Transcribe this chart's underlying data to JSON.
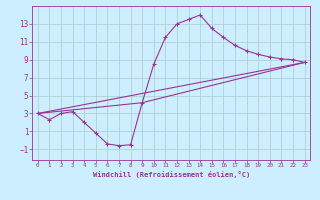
{
  "bg_color": "#cceeff",
  "grid_color": "#aacccc",
  "line_color": "#993399",
  "marker_color": "#993399",
  "xlim": [
    -0.5,
    23.5
  ],
  "ylim": [
    -2.2,
    15.0
  ],
  "xticks": [
    0,
    1,
    2,
    3,
    4,
    5,
    6,
    7,
    8,
    9,
    10,
    11,
    12,
    13,
    14,
    15,
    16,
    17,
    18,
    19,
    20,
    21,
    22,
    23
  ],
  "yticks": [
    -1,
    1,
    3,
    5,
    7,
    9,
    11,
    13
  ],
  "xlabel": "Windchill (Refroidissement éolien,°C)",
  "line1_x": [
    0,
    1,
    2,
    3,
    4,
    5,
    6,
    7,
    8,
    9,
    10,
    11,
    12,
    13,
    14,
    15,
    16,
    17,
    18,
    19,
    20,
    21,
    22,
    23
  ],
  "line1_y": [
    3.0,
    2.3,
    3.0,
    3.2,
    2.0,
    0.8,
    -0.4,
    -0.6,
    -0.5,
    4.2,
    8.5,
    11.5,
    13.0,
    13.5,
    14.0,
    12.5,
    11.5,
    10.6,
    10.0,
    9.6,
    9.3,
    9.1,
    9.0,
    8.7
  ],
  "line2_x": [
    0,
    23
  ],
  "line2_y": [
    3.0,
    8.7
  ],
  "line3_x": [
    0,
    9,
    23
  ],
  "line3_y": [
    3.0,
    4.2,
    8.7
  ],
  "line4_x": [
    0,
    23
  ],
  "line4_y": [
    3.0,
    8.7
  ]
}
